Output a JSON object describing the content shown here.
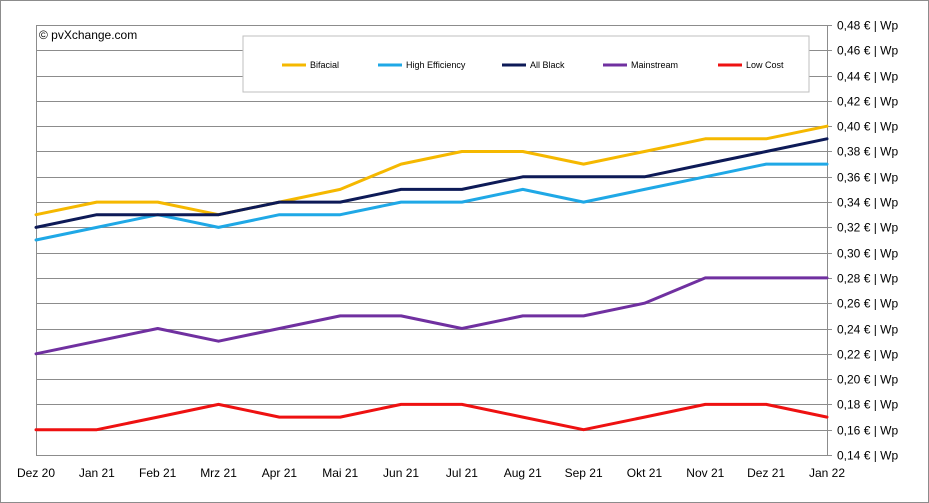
{
  "chart_data": {
    "type": "line",
    "title": "",
    "xlabel": "",
    "ylabel": "",
    "copyright": "© pvXchange.com",
    "categories": [
      "Dez 20",
      "Jan 21",
      "Feb 21",
      "Mrz 21",
      "Apr 21",
      "Mai 21",
      "Jun 21",
      "Jul 21",
      "Aug 21",
      "Sep 21",
      "Okt 21",
      "Nov 21",
      "Dez 21",
      "Jan 22"
    ],
    "ylim": [
      0.14,
      0.48
    ],
    "y_step": 0.02,
    "y_tick_format": "€ | Wp",
    "grid": true,
    "legend_position": "top-right",
    "series": [
      {
        "name": "Bifacial",
        "color": "#f5b800",
        "values": [
          0.33,
          0.34,
          0.34,
          0.33,
          0.34,
          0.35,
          0.37,
          0.38,
          0.38,
          0.37,
          0.38,
          0.39,
          0.39,
          0.4
        ]
      },
      {
        "name": "High Efficiency",
        "color": "#1fa8e6",
        "values": [
          0.31,
          0.32,
          0.33,
          0.32,
          0.33,
          0.33,
          0.34,
          0.34,
          0.35,
          0.34,
          0.35,
          0.36,
          0.37,
          0.37
        ]
      },
      {
        "name": "All Black",
        "color": "#0d1a57",
        "values": [
          0.32,
          0.33,
          0.33,
          0.33,
          0.34,
          0.34,
          0.35,
          0.35,
          0.36,
          0.36,
          0.36,
          0.37,
          0.38,
          0.39
        ]
      },
      {
        "name": "Mainstream",
        "color": "#7030a0",
        "values": [
          0.22,
          0.23,
          0.24,
          0.23,
          0.24,
          0.25,
          0.25,
          0.24,
          0.25,
          0.25,
          0.26,
          0.28,
          0.28,
          0.28
        ]
      },
      {
        "name": "Low Cost",
        "color": "#ee1111",
        "values": [
          0.16,
          0.16,
          0.17,
          0.18,
          0.17,
          0.17,
          0.18,
          0.18,
          0.17,
          0.16,
          0.17,
          0.18,
          0.18,
          0.17
        ]
      }
    ]
  }
}
